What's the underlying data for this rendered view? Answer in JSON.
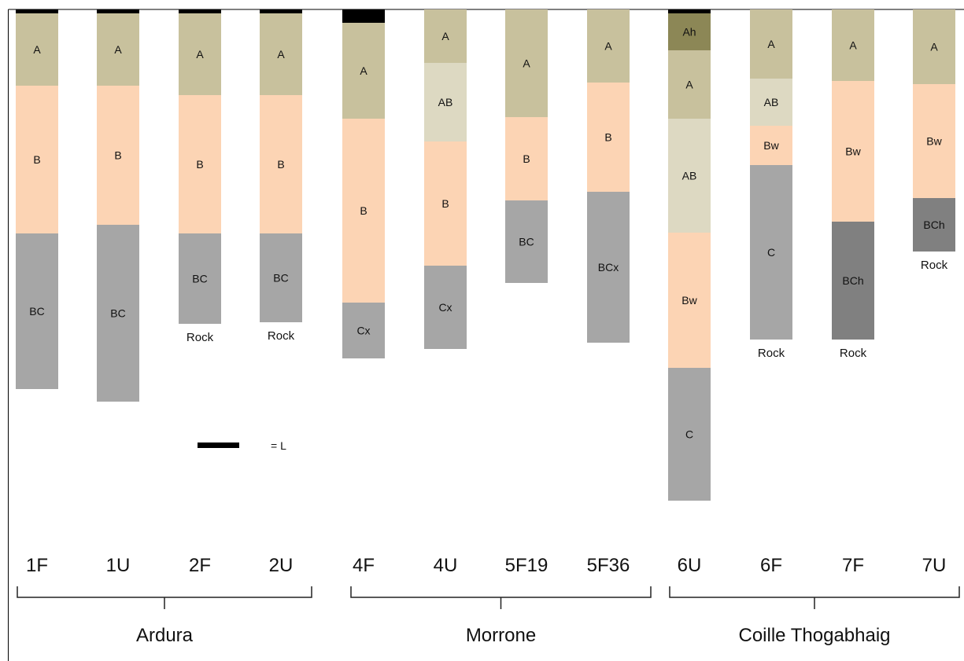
{
  "legend": {
    "color": "#000000",
    "label": "= L"
  },
  "colors": {
    "L": "#000000",
    "Ah": "#8c8756",
    "A": "#c8c19d",
    "AB": "#ddd9c2",
    "B": "#fcd4b4",
    "C": "#a6a6a6",
    "Ch": "#808080"
  },
  "profiles": [
    {
      "id": "1F",
      "horizons": [
        {
          "label": "",
          "kind": "L",
          "top": 0,
          "bottom": 5
        },
        {
          "label": "A",
          "kind": "A",
          "top": 5,
          "bottom": 97
        },
        {
          "label": "B",
          "kind": "B",
          "top": 97,
          "bottom": 285
        },
        {
          "label": "BC",
          "kind": "C",
          "top": 285,
          "bottom": 483
        }
      ],
      "rock": ""
    },
    {
      "id": "1U",
      "horizons": [
        {
          "label": "",
          "kind": "L",
          "top": 0,
          "bottom": 5
        },
        {
          "label": "A",
          "kind": "A",
          "top": 5,
          "bottom": 97
        },
        {
          "label": "B",
          "kind": "B",
          "top": 97,
          "bottom": 274
        },
        {
          "label": "BC",
          "kind": "C",
          "top": 274,
          "bottom": 499
        }
      ],
      "rock": ""
    },
    {
      "id": "2F",
      "horizons": [
        {
          "label": "",
          "kind": "L",
          "top": 0,
          "bottom": 5
        },
        {
          "label": "A",
          "kind": "A",
          "top": 5,
          "bottom": 109
        },
        {
          "label": "B",
          "kind": "B",
          "top": 109,
          "bottom": 285
        },
        {
          "label": "BC",
          "kind": "C",
          "top": 285,
          "bottom": 400
        }
      ],
      "rock": "Rock"
    },
    {
      "id": "2U",
      "horizons": [
        {
          "label": "",
          "kind": "L",
          "top": 0,
          "bottom": 5
        },
        {
          "label": "A",
          "kind": "A",
          "top": 5,
          "bottom": 109
        },
        {
          "label": "B",
          "kind": "B",
          "top": 109,
          "bottom": 285
        },
        {
          "label": "BC",
          "kind": "C",
          "top": 285,
          "bottom": 398
        }
      ],
      "rock": "Rock"
    },
    {
      "id": "4F",
      "horizons": [
        {
          "label": "",
          "kind": "L",
          "top": 0,
          "bottom": 17
        },
        {
          "label": "A",
          "kind": "A",
          "top": 17,
          "bottom": 139
        },
        {
          "label": "B",
          "kind": "B",
          "top": 139,
          "bottom": 373
        },
        {
          "label": "Cx",
          "kind": "C",
          "top": 373,
          "bottom": 444
        }
      ],
      "rock": ""
    },
    {
      "id": "4U",
      "horizons": [
        {
          "label": "A",
          "kind": "A",
          "top": 0,
          "bottom": 68
        },
        {
          "label": "AB",
          "kind": "AB",
          "top": 68,
          "bottom": 168
        },
        {
          "label": "B",
          "kind": "B",
          "top": 168,
          "bottom": 326
        },
        {
          "label": "Cx",
          "kind": "C",
          "top": 326,
          "bottom": 432
        }
      ],
      "rock": ""
    },
    {
      "id": "5F19",
      "horizons": [
        {
          "label": "A",
          "kind": "A",
          "top": 0,
          "bottom": 137
        },
        {
          "label": "B",
          "kind": "B",
          "top": 137,
          "bottom": 243
        },
        {
          "label": "BC",
          "kind": "C",
          "top": 243,
          "bottom": 348
        }
      ],
      "rock": ""
    },
    {
      "id": "5F36",
      "horizons": [
        {
          "label": "A",
          "kind": "A",
          "top": 0,
          "bottom": 93
        },
        {
          "label": "B",
          "kind": "B",
          "top": 93,
          "bottom": 232
        },
        {
          "label": "BCx",
          "kind": "C",
          "top": 232,
          "bottom": 424
        }
      ],
      "rock": ""
    },
    {
      "id": "6U",
      "horizons": [
        {
          "label": "",
          "kind": "L",
          "top": 0,
          "bottom": 5
        },
        {
          "label": "Ah",
          "kind": "Ah",
          "top": 5,
          "bottom": 52
        },
        {
          "label": "A",
          "kind": "A",
          "top": 52,
          "bottom": 139
        },
        {
          "label": "AB",
          "kind": "AB",
          "top": 139,
          "bottom": 284
        },
        {
          "label": "Bw",
          "kind": "B",
          "top": 284,
          "bottom": 456
        },
        {
          "label": "C",
          "kind": "C",
          "top": 456,
          "bottom": 625
        }
      ],
      "rock": ""
    },
    {
      "id": "6F",
      "horizons": [
        {
          "label": "A",
          "kind": "A",
          "top": 0,
          "bottom": 88
        },
        {
          "label": "AB",
          "kind": "AB",
          "top": 88,
          "bottom": 148
        },
        {
          "label": "Bw",
          "kind": "B",
          "top": 148,
          "bottom": 198
        },
        {
          "label": "C",
          "kind": "C",
          "top": 198,
          "bottom": 420
        }
      ],
      "rock": "Rock"
    },
    {
      "id": "7F",
      "horizons": [
        {
          "label": "A",
          "kind": "A",
          "top": 0,
          "bottom": 91
        },
        {
          "label": "Bw",
          "kind": "B",
          "top": 91,
          "bottom": 270
        },
        {
          "label": "BCh",
          "kind": "Ch",
          "top": 270,
          "bottom": 420
        }
      ],
      "rock": "Rock"
    },
    {
      "id": "7U",
      "horizons": [
        {
          "label": "A",
          "kind": "A",
          "top": 0,
          "bottom": 95
        },
        {
          "label": "Bw",
          "kind": "B",
          "top": 95,
          "bottom": 240
        },
        {
          "label": "BCh",
          "kind": "Ch",
          "top": 240,
          "bottom": 308
        }
      ],
      "rock": "Rock"
    }
  ],
  "sites": [
    {
      "name": "Ardura",
      "profiles": [
        "1F",
        "1U",
        "2F",
        "2U"
      ]
    },
    {
      "name": "Morrone",
      "profiles": [
        "4F",
        "4U",
        "5F19",
        "5F36"
      ]
    },
    {
      "name": "Coille Thogabhaig",
      "profiles": [
        "6U",
        "6F",
        "7F",
        "7U"
      ]
    }
  ]
}
